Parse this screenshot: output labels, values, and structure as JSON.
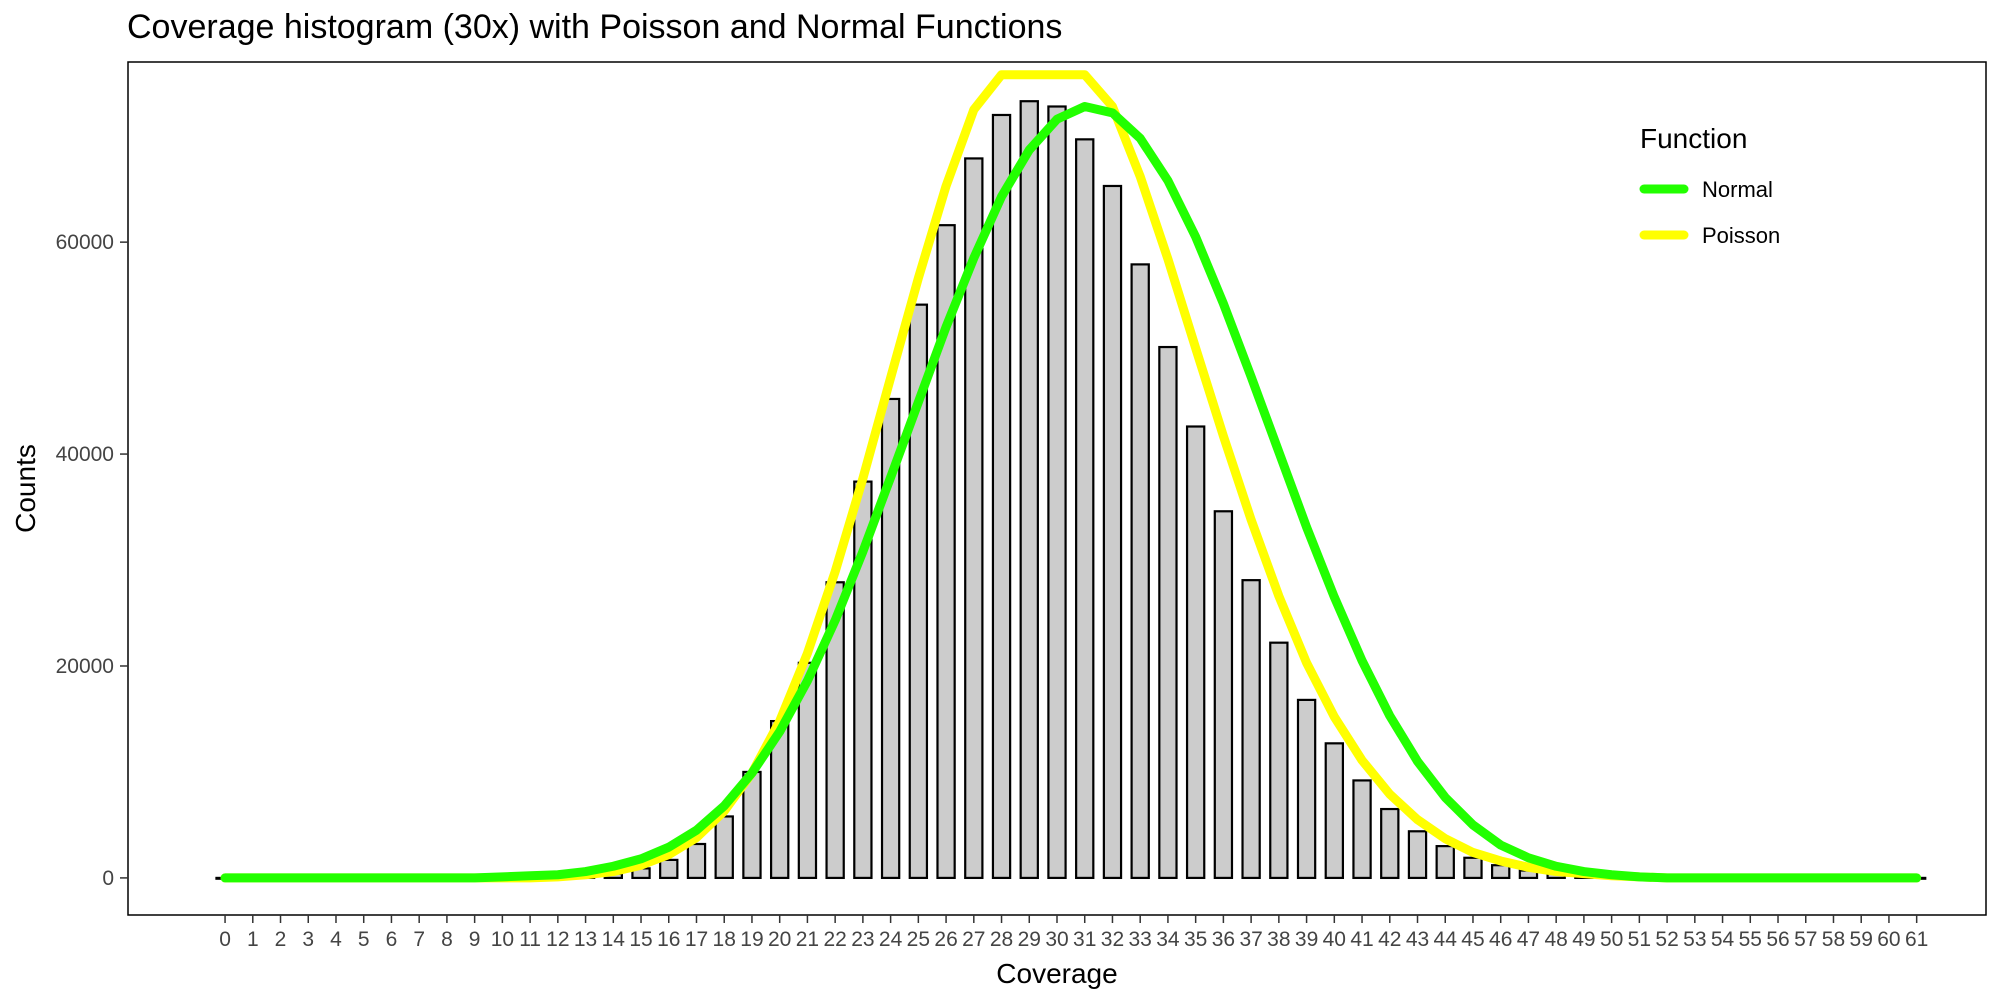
{
  "chart_data": {
    "type": "bar",
    "title": "Coverage histogram (30x) with Poisson and Normal Functions",
    "xlabel": "Coverage",
    "ylabel": "Counts",
    "x": [
      0,
      1,
      2,
      3,
      4,
      5,
      6,
      7,
      8,
      9,
      10,
      11,
      12,
      13,
      14,
      15,
      16,
      17,
      18,
      19,
      20,
      21,
      22,
      23,
      24,
      25,
      26,
      27,
      28,
      29,
      30,
      31,
      32,
      33,
      34,
      35,
      36,
      37,
      38,
      39,
      40,
      41,
      42,
      43,
      44,
      45,
      46,
      47,
      48,
      49,
      50,
      51,
      52,
      53,
      54,
      55,
      56,
      57,
      58,
      59,
      60,
      61
    ],
    "values": [
      0,
      0,
      0,
      0,
      0,
      0,
      0,
      0,
      0,
      0,
      0,
      0,
      0,
      200,
      400,
      900,
      1700,
      3200,
      5800,
      10000,
      14800,
      20300,
      27900,
      37400,
      45200,
      54100,
      61600,
      67900,
      72000,
      73300,
      72800,
      69700,
      65300,
      57900,
      50100,
      42600,
      34600,
      28100,
      22200,
      16800,
      12700,
      9200,
      6500,
      4400,
      3000,
      1900,
      1200,
      700,
      400,
      200,
      100,
      0,
      0,
      0,
      0,
      0,
      0,
      0,
      0,
      0,
      0,
      0
    ],
    "series": [
      {
        "name": "Normal",
        "color": "#22ff00",
        "values": [
          0,
          0,
          0,
          0,
          0,
          0,
          0,
          0,
          0,
          0,
          100,
          200,
          300,
          600,
          1100,
          1800,
          2900,
          4500,
          6800,
          9900,
          13800,
          18600,
          24300,
          30800,
          37800,
          44900,
          52000,
          58500,
          64300,
          68700,
          71600,
          72800,
          72200,
          69800,
          65800,
          60500,
          54200,
          47300,
          40200,
          33100,
          26500,
          20500,
          15300,
          11000,
          7600,
          5000,
          3100,
          1900,
          1100,
          600,
          300,
          100,
          0,
          0,
          0,
          0,
          0,
          0,
          0,
          0,
          0,
          0
        ]
      },
      {
        "name": "Poisson",
        "color": "#ffff00",
        "values": [
          0,
          0,
          0,
          0,
          0,
          0,
          0,
          0,
          0,
          0,
          0,
          0,
          100,
          300,
          600,
          1200,
          2200,
          3800,
          6300,
          9900,
          14800,
          21200,
          28900,
          37700,
          47200,
          56600,
          65300,
          72500,
          77600,
          80300,
          80300,
          77700,
          72800,
          66200,
          58400,
          50000,
          41700,
          33800,
          26600,
          20300,
          15200,
          11100,
          7900,
          5500,
          3700,
          2400,
          1600,
          1000,
          600,
          400,
          200,
          100,
          0,
          0,
          0,
          0,
          0,
          0,
          0,
          0,
          0,
          0
        ]
      }
    ],
    "yticks": [
      0,
      20000,
      40000,
      60000
    ],
    "ylim": [
      -3500,
      77000
    ],
    "xlim": [
      -3.5,
      63.5
    ],
    "grid": false,
    "legend": {
      "title": "Function",
      "position": "top-right"
    },
    "bar_fill": "#cccccc",
    "bar_outline": "#000000"
  }
}
